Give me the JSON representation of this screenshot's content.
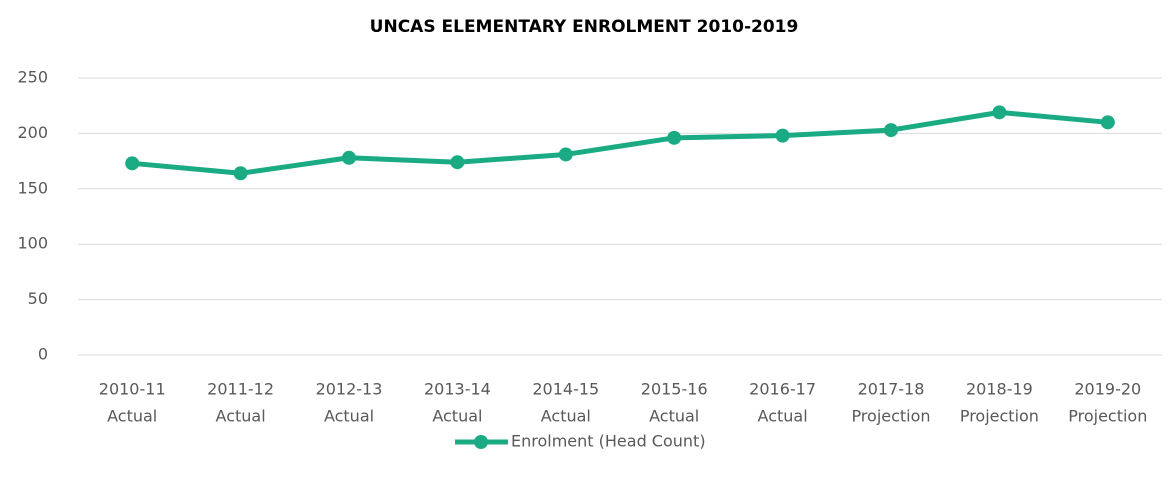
{
  "chart_data": {
    "type": "line",
    "title": "UNCAS ELEMENTARY ENROLMENT 2010-2019",
    "categories": [
      [
        "2010-11",
        "Actual"
      ],
      [
        "2011-12",
        "Actual"
      ],
      [
        "2012-13",
        "Actual"
      ],
      [
        "2013-14",
        "Actual"
      ],
      [
        "2014-15",
        "Actual"
      ],
      [
        "2015-16",
        "Actual"
      ],
      [
        "2016-17",
        "Actual"
      ],
      [
        "2017-18",
        "Projection"
      ],
      [
        "2018-19",
        "Projection"
      ],
      [
        "2019-20",
        "Projection"
      ]
    ],
    "series": [
      {
        "name": "Enrolment (Head Count)",
        "color": "#1aab84",
        "values": [
          173,
          164,
          178,
          174,
          181,
          196,
          198,
          203,
          219,
          210
        ]
      }
    ],
    "ylim": [
      0,
      250
    ],
    "yticks": [
      0,
      50,
      100,
      150,
      200,
      250
    ],
    "grid": true,
    "legend": "bottom"
  }
}
